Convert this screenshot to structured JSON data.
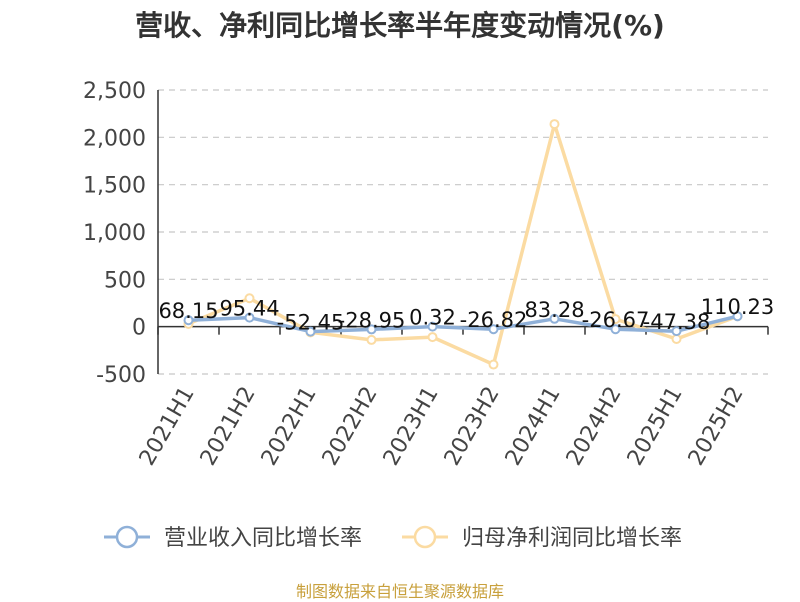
{
  "chart_data": {
    "type": "line",
    "title": "营收、净利同比增长率半年度变动情况(%)",
    "categories": [
      "2021H1",
      "2021H2",
      "2022H1",
      "2022H2",
      "2023H1",
      "2023H2",
      "2024H1",
      "2024H2",
      "2025H1",
      "2025H2"
    ],
    "y_ticks": [
      "2,500",
      "2,000",
      "1,500",
      "1,000",
      "500",
      "0",
      "-500"
    ],
    "ylim": [
      -500,
      2500
    ],
    "grid": true,
    "legend_position": "bottom",
    "series": [
      {
        "name": "营业收入同比增长率",
        "color": "#8fb0d8",
        "values": [
          68.15,
          95.44,
          -52.45,
          -28.95,
          0.32,
          -26.82,
          83.28,
          -26.67,
          -47.38,
          110.23
        ],
        "labels": [
          "68.15",
          "95.44",
          "-52.45",
          "-28.95",
          "0.32",
          "-26.82",
          "83.28",
          "-26.67",
          "-47.38",
          "110.23"
        ]
      },
      {
        "name": "归母净利润同比增长率",
        "color": "#fbdba2",
        "values": [
          30,
          300,
          -60,
          -140,
          -110,
          -400,
          2140,
          80,
          -130,
          110
        ]
      }
    ]
  },
  "source": "制图数据来自恒生聚源数据库"
}
